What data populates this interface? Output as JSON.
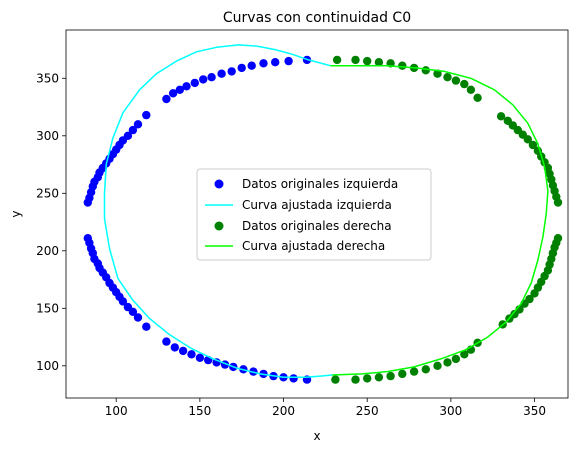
{
  "chart_data": {
    "type": "scatter",
    "title": "Curvas con continuidad C0",
    "xlabel": "x",
    "ylabel": "y",
    "xlim": [
      70,
      370
    ],
    "ylim": [
      72,
      392
    ],
    "xticks": [
      100,
      150,
      200,
      250,
      300,
      350
    ],
    "yticks": [
      100,
      150,
      200,
      250,
      300,
      350
    ],
    "grid": false,
    "legend_position": "center",
    "legend": [
      "Datos originales izquierda",
      "Curva ajustada izquierda",
      "Datos originales derecha",
      "Curva ajustada derecha"
    ],
    "colors": {
      "left_points": "#0000ff",
      "left_curve": "#00ffff",
      "right_points": "#008000",
      "right_curve": "#00ff00"
    },
    "series": [
      {
        "name": "Datos originales izquierda",
        "kind": "scatter",
        "points": [
          [
            83,
            242
          ],
          [
            84,
            246
          ],
          [
            85,
            251
          ],
          [
            86,
            256
          ],
          [
            87,
            260
          ],
          [
            89,
            264
          ],
          [
            90,
            268
          ],
          [
            92,
            272
          ],
          [
            94,
            276
          ],
          [
            96,
            280
          ],
          [
            98,
            284
          ],
          [
            100,
            288
          ],
          [
            102,
            292
          ],
          [
            104,
            296
          ],
          [
            107,
            300
          ],
          [
            110,
            305
          ],
          [
            113,
            310
          ],
          [
            118,
            318
          ],
          [
            130,
            332
          ],
          [
            134,
            337
          ],
          [
            138,
            340
          ],
          [
            142,
            343
          ],
          [
            147,
            346
          ],
          [
            152,
            349
          ],
          [
            157,
            351
          ],
          [
            163,
            354
          ],
          [
            169,
            356
          ],
          [
            175,
            359
          ],
          [
            181,
            361
          ],
          [
            188,
            363
          ],
          [
            195,
            364
          ],
          [
            203,
            365
          ],
          [
            214,
            366
          ],
          [
            83,
            211
          ],
          [
            84,
            207
          ],
          [
            85,
            202
          ],
          [
            86,
            198
          ],
          [
            87,
            193
          ],
          [
            89,
            189
          ],
          [
            90,
            185
          ],
          [
            92,
            181
          ],
          [
            94,
            177
          ],
          [
            96,
            172
          ],
          [
            98,
            168
          ],
          [
            100,
            164
          ],
          [
            102,
            160
          ],
          [
            104,
            156
          ],
          [
            107,
            151
          ],
          [
            110,
            147
          ],
          [
            113,
            142
          ],
          [
            118,
            134
          ],
          [
            130,
            121
          ],
          [
            135,
            116
          ],
          [
            140,
            113
          ],
          [
            145,
            110
          ],
          [
            150,
            107
          ],
          [
            155,
            105
          ],
          [
            160,
            103
          ],
          [
            165,
            101
          ],
          [
            170,
            99
          ],
          [
            176,
            97
          ],
          [
            182,
            95
          ],
          [
            188,
            93
          ],
          [
            194,
            91
          ],
          [
            200,
            90
          ],
          [
            206,
            89
          ],
          [
            214,
            88
          ]
        ]
      },
      {
        "name": "Curva ajustada izquierda",
        "kind": "line",
        "points": [
          [
            228,
            361
          ],
          [
            215,
            366
          ],
          [
            205,
            371
          ],
          [
            195,
            375
          ],
          [
            184,
            378
          ],
          [
            173,
            379
          ],
          [
            160,
            377
          ],
          [
            148,
            373
          ],
          [
            136,
            365
          ],
          [
            124,
            354
          ],
          [
            114,
            340
          ],
          [
            104,
            320
          ],
          [
            98,
            298
          ],
          [
            94,
            275
          ],
          [
            93,
            250
          ],
          [
            93,
            228
          ],
          [
            96,
            202
          ],
          [
            101,
            176
          ],
          [
            110,
            157
          ],
          [
            120,
            141
          ],
          [
            132,
            127
          ],
          [
            145,
            115
          ],
          [
            158,
            106
          ],
          [
            172,
            98
          ],
          [
            186,
            93
          ],
          [
            200,
            90
          ],
          [
            213,
            90
          ],
          [
            222,
            91
          ],
          [
            229,
            92
          ]
        ]
      },
      {
        "name": "Datos originales derecha",
        "kind": "scatter",
        "points": [
          [
            232,
            366
          ],
          [
            243,
            366
          ],
          [
            250,
            365
          ],
          [
            257,
            364
          ],
          [
            264,
            363
          ],
          [
            271,
            361
          ],
          [
            278,
            359
          ],
          [
            285,
            357
          ],
          [
            292,
            354
          ],
          [
            298,
            351
          ],
          [
            303,
            348
          ],
          [
            308,
            345
          ],
          [
            312,
            340
          ],
          [
            316,
            333
          ],
          [
            330,
            317
          ],
          [
            334,
            313
          ],
          [
            337,
            309
          ],
          [
            340,
            305
          ],
          [
            343,
            301
          ],
          [
            346,
            297
          ],
          [
            349,
            292
          ],
          [
            352,
            287
          ],
          [
            354,
            282
          ],
          [
            356,
            277
          ],
          [
            358,
            272
          ],
          [
            359,
            267
          ],
          [
            360,
            262
          ],
          [
            361,
            257
          ],
          [
            362,
            252
          ],
          [
            363,
            247
          ],
          [
            364,
            242
          ],
          [
            231,
            88
          ],
          [
            243,
            88
          ],
          [
            250,
            89
          ],
          [
            257,
            90
          ],
          [
            264,
            91
          ],
          [
            271,
            93
          ],
          [
            278,
            95
          ],
          [
            285,
            97
          ],
          [
            292,
            100
          ],
          [
            298,
            103
          ],
          [
            303,
            106
          ],
          [
            308,
            110
          ],
          [
            312,
            114
          ],
          [
            316,
            120
          ],
          [
            331,
            136
          ],
          [
            335,
            141
          ],
          [
            338,
            145
          ],
          [
            341,
            149
          ],
          [
            344,
            154
          ],
          [
            347,
            158
          ],
          [
            350,
            163
          ],
          [
            352,
            168
          ],
          [
            354,
            173
          ],
          [
            356,
            178
          ],
          [
            358,
            183
          ],
          [
            359,
            188
          ],
          [
            360,
            193
          ],
          [
            361,
            198
          ],
          [
            362,
            203
          ],
          [
            363,
            207
          ],
          [
            364,
            211
          ]
        ]
      },
      {
        "name": "Curva ajustada derecha",
        "kind": "line",
        "points": [
          [
            228,
            361
          ],
          [
            245,
            361
          ],
          [
            262,
            361
          ],
          [
            279,
            359
          ],
          [
            296,
            356
          ],
          [
            312,
            350
          ],
          [
            326,
            340
          ],
          [
            337,
            327
          ],
          [
            346,
            311
          ],
          [
            352,
            293
          ],
          [
            356,
            273
          ],
          [
            358,
            252
          ],
          [
            357,
            232
          ],
          [
            355,
            212
          ],
          [
            352,
            192
          ],
          [
            348,
            172
          ],
          [
            342,
            154
          ],
          [
            333,
            138
          ],
          [
            322,
            125
          ],
          [
            309,
            114
          ],
          [
            294,
            106
          ],
          [
            278,
            99
          ],
          [
            262,
            95
          ],
          [
            247,
            93
          ],
          [
            229,
            92
          ]
        ]
      }
    ]
  }
}
